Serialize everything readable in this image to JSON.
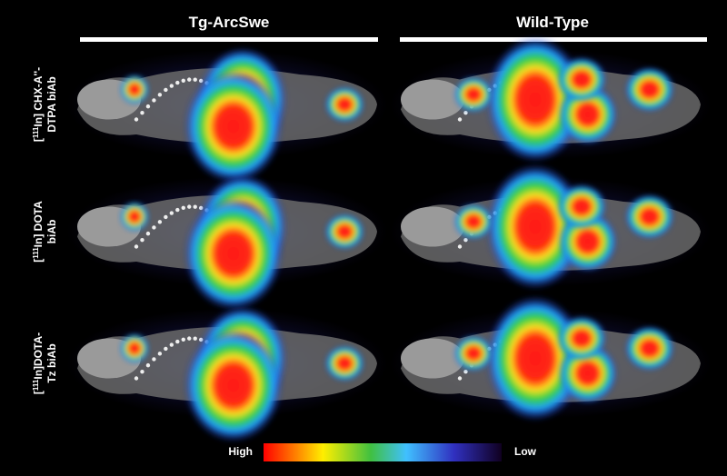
{
  "columns": [
    "Tg-ArcSwe",
    "Wild-Type"
  ],
  "rows": [
    {
      "open": "[",
      "sup": "111",
      "line1": "In] CHX-A''-",
      "line2": "DTPA biAb"
    },
    {
      "open": "[",
      "sup": "111",
      "line1": "In] DOTA",
      "line2": "biAb"
    },
    {
      "open": "[",
      "sup": "111",
      "line1": "In]DOTA-",
      "line2": "Tz biAb"
    }
  ],
  "colorbar": {
    "high": "High",
    "low": "Low"
  }
}
